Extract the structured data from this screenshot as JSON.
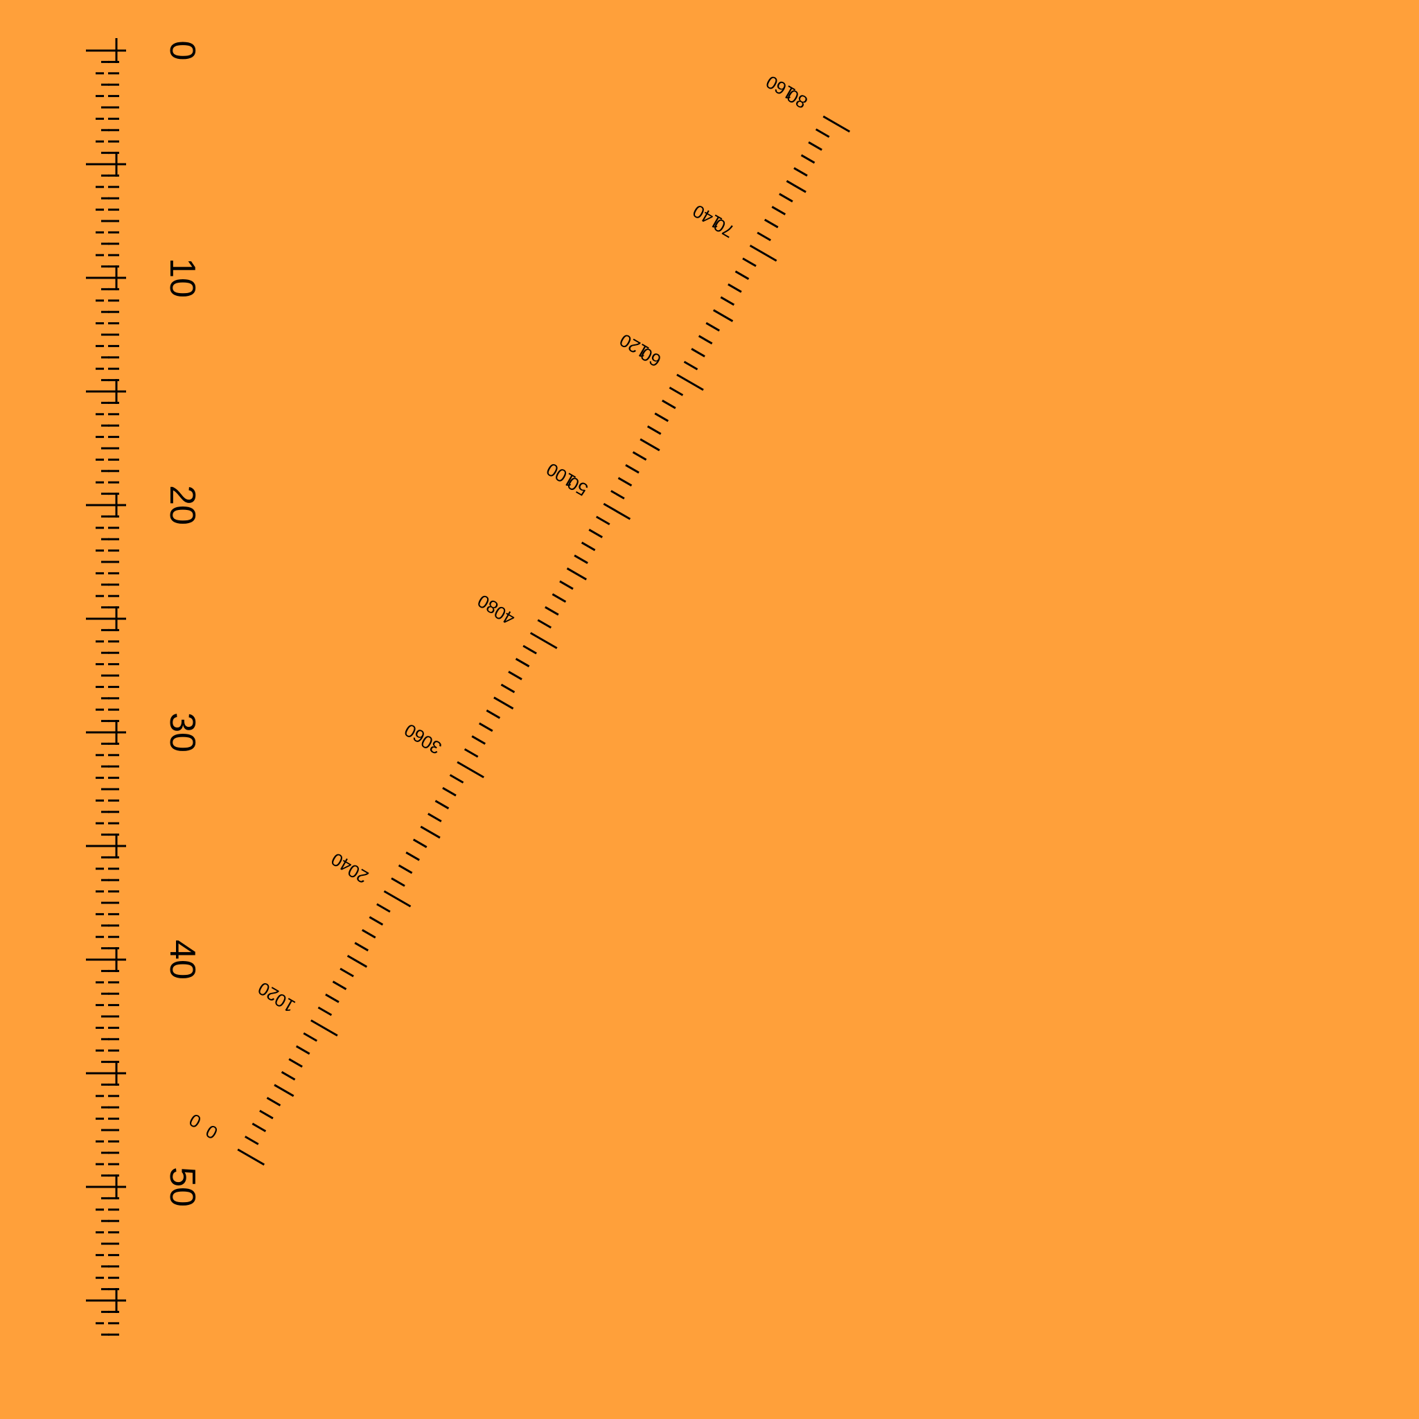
{
  "background_color": "#FFA03A",
  "ink_color": "#000000",
  "straight_scale": {
    "labels": [
      "0",
      "10",
      "20",
      "30",
      "40",
      "50"
    ]
  },
  "diagonal_scale": {
    "inner_labels": [
      "0",
      "10",
      "20",
      "30",
      "40",
      "50",
      "60",
      "70",
      "80"
    ],
    "outer_labels": [
      "0",
      "20",
      "40",
      "60",
      "80",
      "100",
      "120",
      "140",
      "160"
    ]
  }
}
